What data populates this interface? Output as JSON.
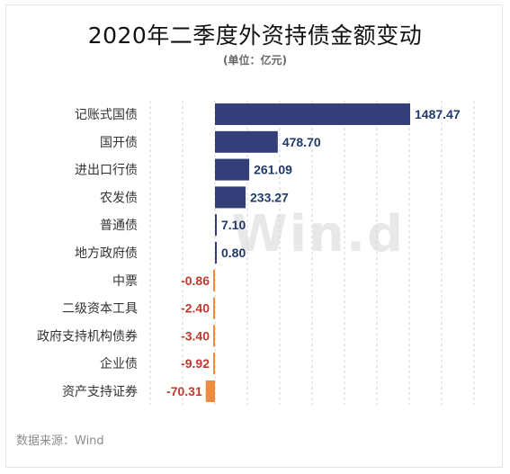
{
  "title": "2020年二季度外资持债金额变动",
  "unit_note": "(单位：亿元)",
  "source": "数据来源：Wind",
  "watermark": "Win.d",
  "colors": {
    "positive": "#343f7a",
    "negative": "#f08a3c",
    "positive_label": "#1f3a6b",
    "negative_label": "#c0392b",
    "category_label": "#333333",
    "grid": "#d6d6d6"
  },
  "chart_data": {
    "type": "bar",
    "orientation": "horizontal",
    "categories": [
      "记账式国债",
      "国开债",
      "进出口行债",
      "农发债",
      "普通债",
      "地方政府债",
      "中票",
      "二级资本工具",
      "政府支持机构债券",
      "企业债",
      "资产支持证券"
    ],
    "values": [
      1487.47,
      478.7,
      261.09,
      233.27,
      7.1,
      0.8,
      -0.86,
      -2.4,
      -3.4,
      -9.92,
      -70.31
    ],
    "data_labels": [
      "1487.47",
      "478.70",
      "261.09",
      "233.27",
      "7.10",
      "0.80",
      "-0.86",
      "-2.40",
      "-3.40",
      "-9.92",
      "-70.31"
    ],
    "title": "2020年二季度外资持债金额变动",
    "xlabel": "",
    "ylabel": "",
    "grid": true,
    "legend": "none"
  }
}
